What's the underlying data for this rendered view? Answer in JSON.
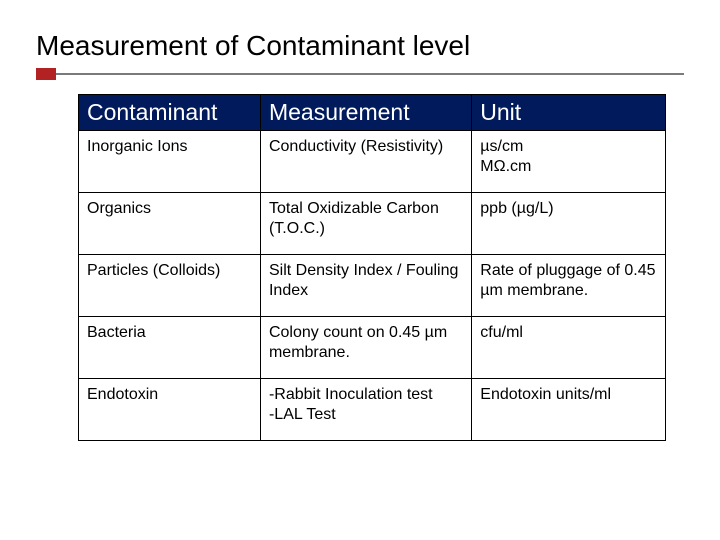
{
  "title": "Measurement of Contaminant level",
  "colors": {
    "header_bg": "#001a5c",
    "header_text": "#ffffff",
    "accent": "#b22222",
    "rule": "#7a7a7a",
    "border": "#000000",
    "body_text": "#000000",
    "background": "#ffffff"
  },
  "typography": {
    "title_fontsize": 28,
    "header_fontsize": 23,
    "cell_fontsize": 16,
    "font_family": "Arial"
  },
  "table": {
    "type": "table",
    "column_widths_pct": [
      31,
      36,
      33
    ],
    "columns": [
      "Contaminant",
      "Measurement",
      "Unit"
    ],
    "rows": [
      [
        "Inorganic Ions",
        "Conductivity (Resistivity)",
        "µs/cm\nMΩ.cm"
      ],
      [
        "Organics",
        "Total Oxidizable Carbon (T.O.C.)",
        "ppb (µg/L)"
      ],
      [
        "Particles (Colloids)",
        "Silt Density Index / Fouling Index",
        "Rate of pluggage of 0.45 µm membrane."
      ],
      [
        "Bacteria",
        "Colony count on 0.45 µm membrane.",
        "cfu/ml"
      ],
      [
        "Endotoxin",
        "-Rabbit Inoculation test\n-LAL Test",
        "Endotoxin units/ml"
      ]
    ]
  }
}
